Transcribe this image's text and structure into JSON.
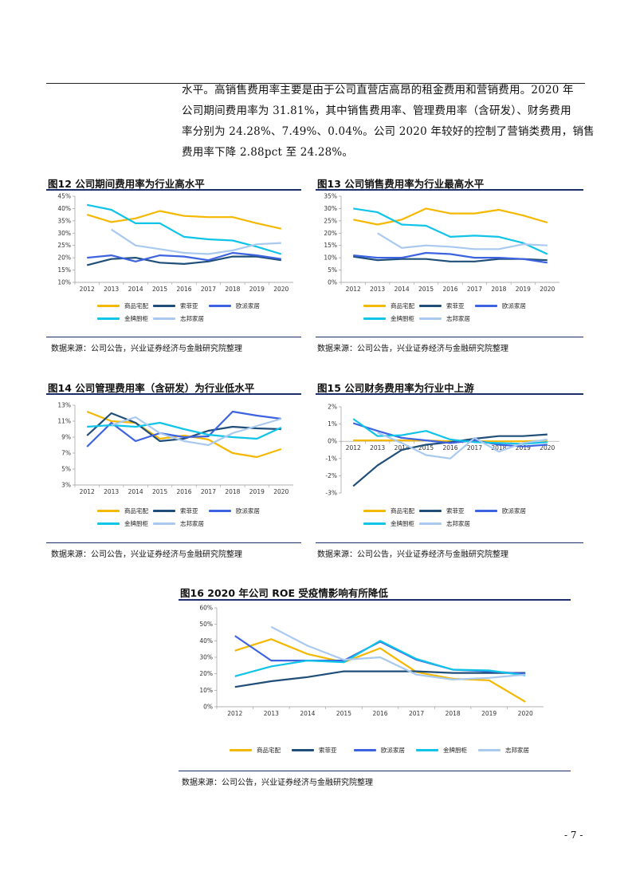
{
  "paragraph": {
    "lines": [
      "水平。高销售费用率主要是由于公司直营店高昂的租金费用和营销费用。2020 年",
      "公司期间费用率为 31.81%，其中销售费用率、管理费用率（含研发）、财务费用",
      "率分别为 24.28%、7.49%、0.04%。公司 2020 年较好的控制了营销类费用，销售",
      "费用率下降 2.88pct 至 24.28%。"
    ]
  },
  "source_text": "数据来源：公司公告，兴业证券经济与金融研究院整理",
  "page_number": "- 7 -",
  "series_colors": {
    "商品宅配": "#f5b800",
    "索菲亚": "#1f4e79",
    "欧派家居": "#3d63e0",
    "金牌厨柜": "#10c4e8",
    "志邦家居": "#a9c9ef"
  },
  "figures": [
    {
      "title": "图12 公司期间费用率为行业高水平"
    },
    {
      "title": "图13 公司销售费用率为行业最高水平"
    },
    {
      "title": "图14 公司管理费用率（含研发）为行业低水平"
    },
    {
      "title": "图15 公司财务费用率为行业中上游"
    },
    {
      "title": "图16 2020 年公司 ROE 受疫情影响有所降低"
    }
  ],
  "chart_data": [
    {
      "type": "line",
      "x": [
        "2012",
        "2013",
        "2014",
        "2015",
        "2016",
        "2017",
        "2018",
        "2019",
        "2020"
      ],
      "ylim": [
        10,
        45
      ],
      "yticks": [
        "10%",
        "15%",
        "20%",
        "25%",
        "30%",
        "35%",
        "40%",
        "45%"
      ],
      "ytick_values": [
        10,
        15,
        20,
        25,
        30,
        35,
        40,
        45
      ],
      "legend_columns": 3,
      "series": [
        {
          "name": "商品宅配",
          "values": [
            37.5,
            34.5,
            36,
            39,
            37,
            36.5,
            36.5,
            34,
            31.8
          ]
        },
        {
          "name": "索菲亚",
          "values": [
            17,
            19.5,
            20,
            18,
            17.5,
            18.5,
            20.5,
            20.5,
            19
          ]
        },
        {
          "name": "欧派家居",
          "values": [
            20,
            21,
            18.5,
            21,
            20.5,
            19,
            22,
            21,
            19.5
          ]
        },
        {
          "name": "金牌厨柜",
          "values": [
            41.5,
            39.5,
            34,
            34,
            28.5,
            27.5,
            27,
            24.5,
            21.5
          ]
        },
        {
          "name": "志邦家居",
          "values": [
            null,
            31.5,
            25,
            23.5,
            22,
            21.5,
            23,
            25.5,
            26
          ]
        }
      ]
    },
    {
      "type": "line",
      "x": [
        "2012",
        "2013",
        "2014",
        "2015",
        "2016",
        "2017",
        "2018",
        "2019",
        "2020"
      ],
      "ylim": [
        0,
        35
      ],
      "yticks": [
        "0%",
        "5%",
        "10%",
        "15%",
        "20%",
        "25%",
        "30%",
        "35%"
      ],
      "ytick_values": [
        0,
        5,
        10,
        15,
        20,
        25,
        30,
        35
      ],
      "legend_columns": 3,
      "series": [
        {
          "name": "商品宅配",
          "values": [
            25.5,
            23.5,
            25.5,
            30,
            28,
            28,
            29.5,
            27.2,
            24.3
          ]
        },
        {
          "name": "索菲亚",
          "values": [
            10.5,
            9,
            9.5,
            9.5,
            8.5,
            8.5,
            9.5,
            9.5,
            9
          ]
        },
        {
          "name": "欧派家居",
          "values": [
            11,
            10,
            10,
            12,
            11.5,
            10,
            10,
            9.5,
            8
          ]
        },
        {
          "name": "金牌厨柜",
          "values": [
            30,
            28.5,
            23.5,
            23,
            18.5,
            19,
            18.5,
            16,
            11.5
          ]
        },
        {
          "name": "志邦家居",
          "values": [
            null,
            20,
            14,
            15,
            14.5,
            13.5,
            13.5,
            15.5,
            15
          ]
        }
      ]
    },
    {
      "type": "line",
      "x": [
        "2012",
        "2013",
        "2014",
        "2015",
        "2016",
        "2017",
        "2018",
        "2019",
        "2020"
      ],
      "ylim": [
        3,
        13
      ],
      "yticks": [
        "3%",
        "5%",
        "7%",
        "9%",
        "11%",
        "13%"
      ],
      "ytick_values": [
        3,
        5,
        7,
        9,
        11,
        13
      ],
      "legend_columns": 3,
      "series": [
        {
          "name": "商品宅配",
          "values": [
            12.2,
            11,
            10.8,
            8.8,
            9.2,
            8.7,
            7,
            6.5,
            7.5
          ]
        },
        {
          "name": "索菲亚",
          "values": [
            9.2,
            12,
            10.8,
            8.5,
            8.8,
            9.8,
            10.3,
            10.1,
            10
          ]
        },
        {
          "name": "欧派家居",
          "values": [
            7.8,
            10.8,
            8.5,
            9.5,
            9,
            9.1,
            12.2,
            11.7,
            11.3
          ]
        },
        {
          "name": "金牌厨柜",
          "values": [
            10.3,
            10.5,
            10.3,
            10.8,
            10,
            9.3,
            9,
            8.8,
            10.2
          ]
        },
        {
          "name": "志邦家居",
          "values": [
            null,
            10.5,
            11.5,
            9.5,
            8.5,
            8,
            9.5,
            10.4,
            11.3
          ]
        }
      ]
    },
    {
      "type": "line",
      "x": [
        "2012",
        "2013",
        "2014",
        "2015",
        "2016",
        "2017",
        "2018",
        "2019",
        "2020"
      ],
      "ylim": [
        -3,
        2
      ],
      "yticks": [
        "-3%",
        "-2%",
        "-1%",
        "0%",
        "1%",
        "2%"
      ],
      "ytick_values": [
        -3,
        -2,
        -1,
        0,
        1,
        2
      ],
      "legend_columns": 3,
      "series": [
        {
          "name": "商品宅配",
          "values": [
            0.05,
            0.05,
            0.05,
            0.05,
            0,
            0,
            0,
            0,
            0.04
          ]
        },
        {
          "name": "索菲亚",
          "values": [
            -2.6,
            -1.4,
            -0.5,
            -0.2,
            -0.05,
            0.15,
            0.3,
            0.3,
            0.4
          ]
        },
        {
          "name": "欧派家居",
          "values": [
            1.05,
            0.6,
            0.2,
            0.05,
            -0.1,
            0.05,
            -0.2,
            -0.3,
            -0.2
          ]
        },
        {
          "name": "金牌厨柜",
          "values": [
            1.3,
            0.3,
            0.35,
            0.6,
            0.1,
            -0.05,
            -0.1,
            -0.15,
            -0.05
          ]
        },
        {
          "name": "志邦家居",
          "values": [
            null,
            0.5,
            -0.1,
            -0.8,
            -1,
            0.2,
            -0.6,
            -0.1,
            0.1
          ]
        }
      ]
    },
    {
      "type": "line",
      "x": [
        "2012",
        "2013",
        "2014",
        "2015",
        "2016",
        "2017",
        "2018",
        "2019",
        "2020"
      ],
      "ylim": [
        0,
        60
      ],
      "yticks": [
        "0%",
        "10%",
        "20%",
        "30%",
        "40%",
        "50%",
        "60%"
      ],
      "ytick_values": [
        0,
        10,
        20,
        30,
        40,
        50,
        60
      ],
      "legend_columns": 5,
      "series": [
        {
          "name": "商品宅配",
          "values": [
            34,
            41,
            32,
            27,
            35.5,
            21,
            17,
            16,
            3
          ]
        },
        {
          "name": "索菲亚",
          "values": [
            12,
            15.5,
            18,
            21.5,
            21.5,
            21.5,
            20.5,
            20.5,
            20.5
          ]
        },
        {
          "name": "欧派家居",
          "values": [
            43,
            28,
            28,
            28,
            39.5,
            28.5,
            22.5,
            21.5,
            20
          ]
        },
        {
          "name": "金牌厨柜",
          "values": [
            18.5,
            24.5,
            28,
            27,
            40,
            29,
            22.5,
            22,
            19
          ]
        },
        {
          "name": "志邦家居",
          "values": [
            null,
            48.5,
            37,
            28.5,
            30,
            19.5,
            16.5,
            17.5,
            19.5
          ]
        }
      ]
    }
  ]
}
